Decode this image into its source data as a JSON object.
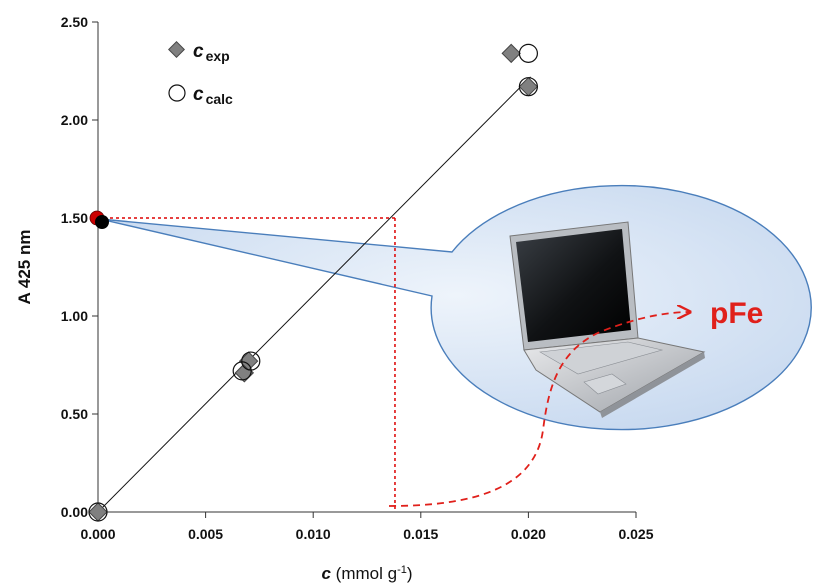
{
  "chart_data": {
    "type": "scatter",
    "xlabel_symbol": "c",
    "xlabel_unit_open": " (mmol g",
    "xlabel_sup": "-1",
    "xlabel_close": ")",
    "ylabel": "A 425 nm",
    "xlim": [
      0.0,
      0.025
    ],
    "ylim": [
      0.0,
      2.5
    ],
    "x_ticks": [
      "0.000",
      "0.005",
      "0.010",
      "0.015",
      "0.020",
      "0.025"
    ],
    "y_ticks": [
      "0.00",
      "0.50",
      "1.00",
      "1.50",
      "2.00",
      "2.50"
    ],
    "grid": false,
    "legend_position": "top-left",
    "series": [
      {
        "name_symbol": "c",
        "name_sub": "exp",
        "marker": "diamond",
        "color": "#808080",
        "points": [
          [
            0.0,
            0.0
          ],
          [
            0.0068,
            0.71
          ],
          [
            0.007,
            0.77
          ],
          [
            0.0192,
            2.34
          ],
          [
            0.02,
            2.17
          ]
        ]
      },
      {
        "name_symbol": "c",
        "name_sub": "calc",
        "marker": "open-circle",
        "color": "#ffffff",
        "points": [
          [
            0.0,
            0.0
          ],
          [
            0.0067,
            0.72
          ],
          [
            0.0071,
            0.77
          ],
          [
            0.02,
            2.34
          ],
          [
            0.02,
            2.17
          ]
        ]
      }
    ],
    "fit_line": {
      "x": [
        0.0,
        0.0201
      ],
      "y": [
        0.0,
        2.22
      ]
    },
    "measured_point": {
      "x": 0.0,
      "y": 1.5,
      "color": "#cc0000"
    },
    "projection": {
      "x": 0.0138,
      "y": 1.5,
      "color": "#dd0000"
    },
    "annotation_text": "pFe",
    "annotation_color": "#e0201b",
    "bubble_fill": "#d9e6f5",
    "bubble_stroke": "#4a7ebb"
  }
}
